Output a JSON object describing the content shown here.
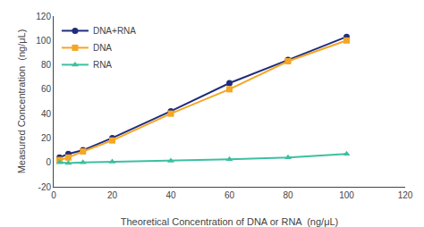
{
  "chart_data": {
    "type": "line",
    "xlabel": "Theoretical Concentration of DNA or RNA  (ng/μL)",
    "ylabel": "Measured Concentration  (ng/μL)",
    "x": [
      2,
      5,
      10,
      20,
      40,
      60,
      80,
      100
    ],
    "series": [
      {
        "name": "DNA+RNA",
        "color": "#1f2d7b",
        "marker": "circle",
        "values": [
          4,
          7,
          10,
          20,
          42,
          65,
          84,
          103
        ]
      },
      {
        "name": "DNA",
        "color": "#f5a623",
        "marker": "square",
        "values": [
          2,
          4,
          9,
          18,
          40,
          60,
          83,
          100
        ]
      },
      {
        "name": "RNA",
        "color": "#3dbfa0",
        "marker": "triangle-up",
        "values": [
          0,
          -0.5,
          0,
          0.5,
          1.2,
          2.5,
          4,
          7
        ]
      }
    ],
    "xlim": [
      0,
      120
    ],
    "ylim": [
      -20,
      120
    ],
    "xticks": [
      0,
      20,
      40,
      60,
      80,
      100,
      120
    ],
    "yticks": [
      -20,
      0,
      20,
      40,
      60,
      80,
      100,
      120
    ],
    "grid": false,
    "legend": "upper left"
  }
}
